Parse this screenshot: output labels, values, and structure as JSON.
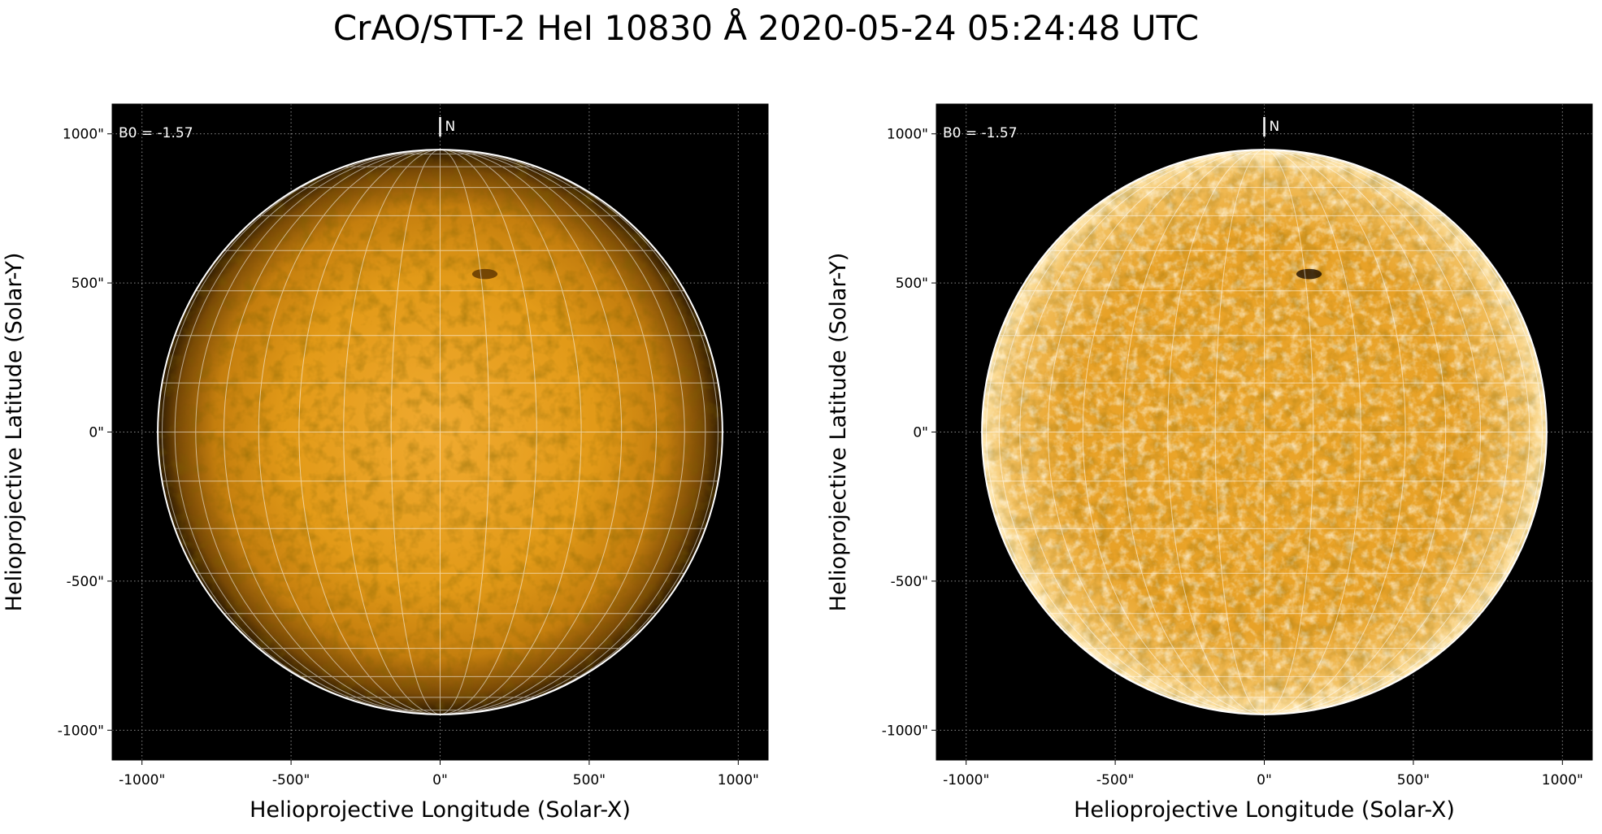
{
  "figure": {
    "title": "CrAO/STT-2 HeI 10830 Å 2020-05-24 05:24:48 UTC"
  },
  "colors": {
    "background": "#000000",
    "disk_core": "#e8a020",
    "disk_limb": "#3a2200",
    "grid": "#ffffff",
    "enhanced_core": "#f0b030"
  },
  "panels": [
    {
      "id": "original",
      "b0_label": "B0 = -1.57",
      "north_label": "N",
      "xlabel": "Helioprojective Longitude (Solar-X)",
      "ylabel": "Helioprojective Latitude (Solar-Y)",
      "xticks": [
        "-1000\"",
        "-500\"",
        "0\"",
        "500\"",
        "1000\""
      ],
      "yticks": [
        "1000\"",
        "500\"",
        "0\"",
        "-500\"",
        "-1000\""
      ],
      "style": "limb-darkened"
    },
    {
      "id": "enhanced",
      "b0_label": "B0 = -1.57",
      "north_label": "N",
      "xlabel": "Helioprojective Longitude (Solar-X)",
      "ylabel": "Helioprojective Latitude (Solar-Y)",
      "xticks": [
        "-1000\"",
        "-500\"",
        "0\"",
        "500\"",
        "1000\""
      ],
      "yticks": [
        "1000\"",
        "500\"",
        "0\"",
        "-500\"",
        "-1000\""
      ],
      "style": "limb-corrected"
    }
  ]
}
